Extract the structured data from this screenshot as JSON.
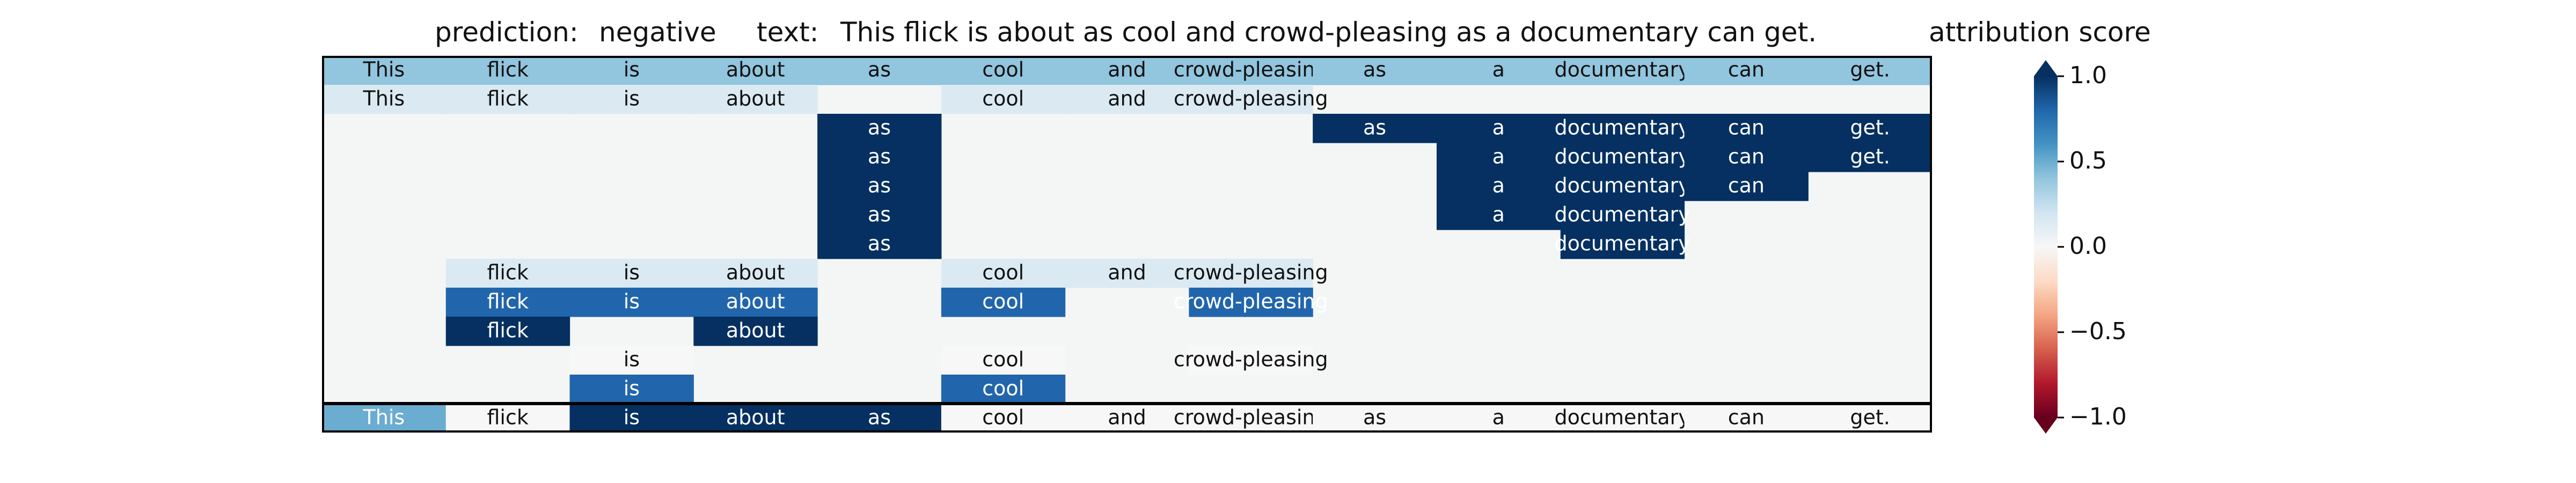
{
  "figure": {
    "prediction_label": "prediction:",
    "prediction_value": "negative",
    "text_label": "text:",
    "text_value": "This flick is about as cool and crowd-pleasing as a documentary can get."
  },
  "chart_data": {
    "type": "heatmap",
    "tokens": [
      "This",
      "flick",
      "is",
      "about",
      "as",
      "cool",
      "and",
      "crowd-pleasing",
      "as",
      "a",
      "documentary",
      "can",
      "get."
    ],
    "rows": [
      [
        0.4,
        0.4,
        0.4,
        0.4,
        0.4,
        0.4,
        0.4,
        0.4,
        0.4,
        0.4,
        0.4,
        0.4,
        0.4
      ],
      [
        0.15,
        0.15,
        0.15,
        0.15,
        null,
        0.15,
        0.15,
        0.15,
        null,
        null,
        null,
        null,
        null
      ],
      [
        null,
        null,
        null,
        null,
        1.0,
        null,
        null,
        null,
        1.0,
        1.0,
        1.0,
        1.0,
        1.0
      ],
      [
        null,
        null,
        null,
        null,
        1.0,
        null,
        null,
        null,
        null,
        1.0,
        1.0,
        1.0,
        1.0
      ],
      [
        null,
        null,
        null,
        null,
        1.0,
        null,
        null,
        null,
        null,
        1.0,
        1.0,
        1.0,
        null
      ],
      [
        null,
        null,
        null,
        null,
        1.0,
        null,
        null,
        null,
        null,
        1.0,
        1.0,
        null,
        null
      ],
      [
        null,
        null,
        null,
        null,
        1.0,
        null,
        null,
        null,
        null,
        null,
        1.0,
        null,
        null
      ],
      [
        null,
        0.15,
        0.15,
        0.15,
        null,
        0.15,
        0.15,
        0.15,
        null,
        null,
        null,
        null,
        null
      ],
      [
        null,
        0.8,
        0.8,
        0.8,
        null,
        0.8,
        null,
        0.8,
        null,
        null,
        null,
        null,
        null
      ],
      [
        null,
        1.0,
        null,
        1.0,
        null,
        null,
        null,
        null,
        null,
        null,
        null,
        null,
        null
      ],
      [
        null,
        null,
        0.0,
        null,
        null,
        0.0,
        null,
        0.0,
        null,
        null,
        null,
        null,
        null
      ],
      [
        null,
        null,
        0.8,
        null,
        null,
        0.8,
        null,
        null,
        null,
        null,
        null,
        null,
        null
      ],
      [
        0.5,
        0.0,
        1.0,
        1.0,
        1.0,
        0.0,
        0.0,
        0.0,
        0.0,
        0.0,
        0.0,
        0.0,
        0.0
      ]
    ],
    "colorbar": {
      "title": "attribution score",
      "range": [
        -1,
        1
      ],
      "ticks": [
        1.0,
        0.5,
        0.0,
        -0.5,
        -1.0
      ],
      "tick_labels": [
        "1.0",
        "0.5",
        "0.0",
        "−0.5",
        "−1.0"
      ],
      "extend": "both",
      "colormap": "RdBu"
    },
    "empty_cell_color": "#f4f6f6",
    "separator_before_last_row": true
  }
}
